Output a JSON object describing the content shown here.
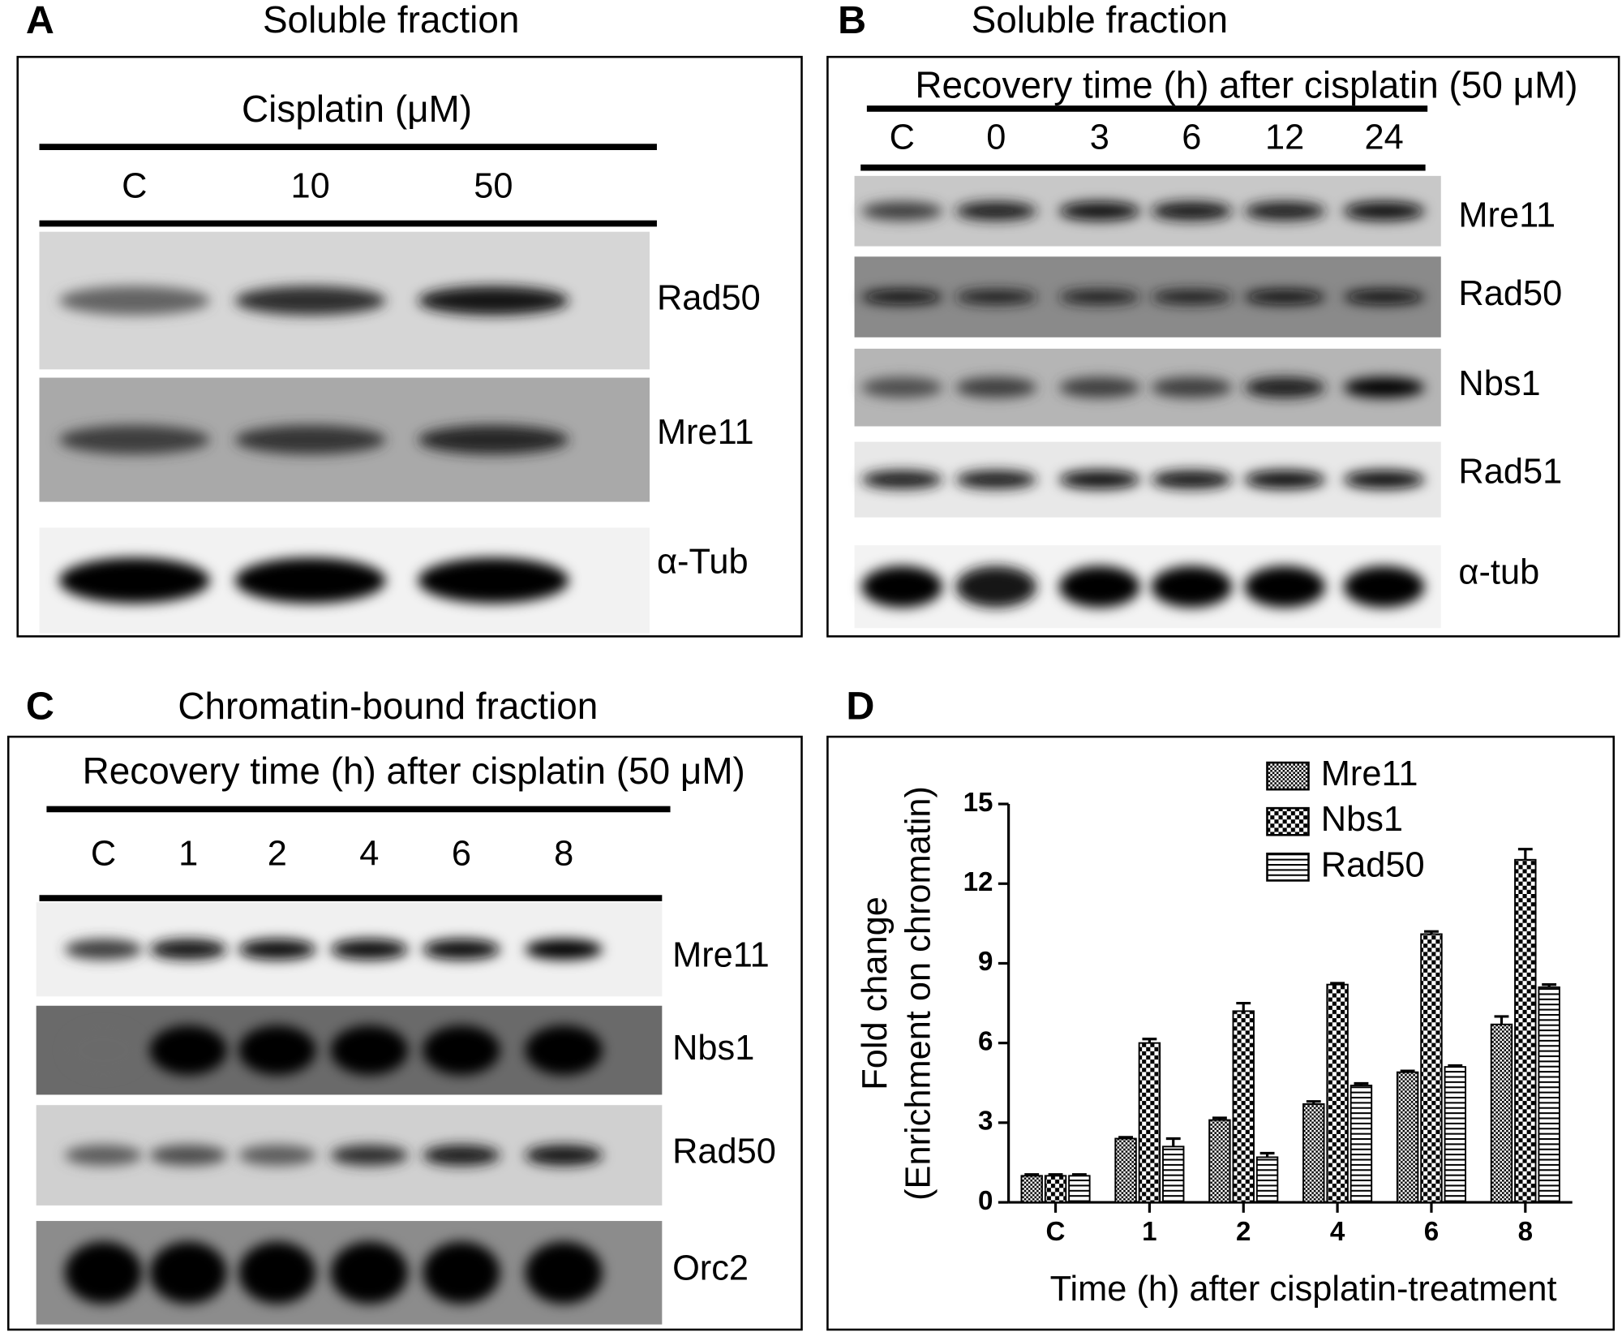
{
  "panels": {
    "A": {
      "letter": "A",
      "title": "Soluble fraction",
      "header": "Cisplatin (μM)",
      "lanes": [
        "C",
        "10",
        "50"
      ],
      "blots": [
        "Rad50",
        "Mre11",
        "α-Tub"
      ]
    },
    "B": {
      "letter": "B",
      "title": "Soluble fraction",
      "header": "Recovery time (h) after cisplatin (50 μM)",
      "lanes": [
        "C",
        "0",
        "3",
        "6",
        "12",
        "24"
      ],
      "blots": [
        "Mre11",
        "Rad50",
        "Nbs1",
        "Rad51",
        "α-tub"
      ]
    },
    "C": {
      "letter": "C",
      "title": "Chromatin-bound fraction",
      "header": "Recovery time (h) after cisplatin (50 μM)",
      "lanes": [
        "C",
        "1",
        "2",
        "4",
        "6",
        "8"
      ],
      "blots": [
        "Mre11",
        "Nbs1",
        "Rad50",
        "Orc2"
      ]
    },
    "D": {
      "letter": "D"
    }
  },
  "chart_data": {
    "type": "bar",
    "y_label": [
      "Fold change",
      "(Enrichment on chromatin)"
    ],
    "x_label": "Time (h) after cisplatin-treatment",
    "categories": [
      "C",
      "1",
      "2",
      "4",
      "6",
      "8"
    ],
    "series": [
      {
        "name": "Mre11",
        "color": "#000000",
        "pattern": "fine-check",
        "values": [
          1,
          2.4,
          3.1,
          3.7,
          4.9,
          6.7
        ],
        "errors": [
          0.05,
          0.05,
          0.08,
          0.1,
          0.05,
          0.3
        ]
      },
      {
        "name": "Nbs1",
        "color": "#000000",
        "pattern": "check",
        "values": [
          1,
          6.0,
          7.2,
          8.2,
          10.1,
          12.9
        ],
        "errors": [
          0.05,
          0.15,
          0.3,
          0.05,
          0.1,
          0.4
        ]
      },
      {
        "name": "Rad50",
        "color": "#000000",
        "pattern": "horizontal",
        "values": [
          1,
          2.1,
          1.7,
          4.4,
          5.1,
          8.1
        ],
        "errors": [
          0.05,
          0.3,
          0.15,
          0.08,
          0.05,
          0.1
        ]
      }
    ],
    "ylim": [
      0,
      15
    ],
    "yticks": [
      0,
      3,
      6,
      9,
      12,
      15
    ],
    "legend": "top-right"
  }
}
